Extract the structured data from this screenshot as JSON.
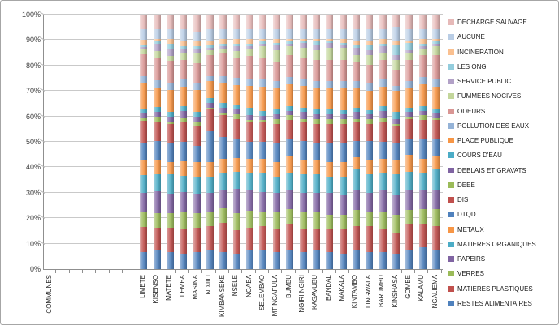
{
  "chart_data": {
    "type": "bar",
    "subtype": "stacked-100-percent",
    "title": "",
    "xlabel": "",
    "ylabel": "",
    "ylim": [
      0,
      100
    ],
    "grid": true,
    "legend_position": "right",
    "stack_note": "series listed bottom-to-top of stack; legend shows reverse order",
    "y_ticks": [
      "0%",
      "10%",
      "20%",
      "30%",
      "40%",
      "50%",
      "60%",
      "70%",
      "80%",
      "90%",
      "100%"
    ],
    "lead_categories": [
      "COMMUNES",
      "",
      "",
      "",
      "",
      "",
      ""
    ],
    "categories": [
      "LIMETE",
      "KISENSO",
      "MATETE",
      "LEMBA",
      "MASINA",
      "NDJILI",
      "KIMBANSEKE",
      "NSELE",
      "NGABA",
      "SELEMBAO",
      "MT NGAFULA",
      "BUMBU",
      "NGIRI NGIRI",
      "KASAVUBU",
      "BANDAL",
      "MAKALA",
      "KINTAMBO",
      "LINGWALA",
      "BARUMBU",
      "KINSHASA",
      "GOMBE",
      "KALAMU",
      "NGALIEMA"
    ],
    "series": [
      {
        "name": "RESTES ALIMENTAIRES",
        "color": "#4F81BD",
        "values": [
          7,
          8,
          7,
          6,
          7,
          8,
          7,
          6,
          8,
          8,
          7,
          8,
          7,
          8,
          7,
          6,
          8,
          7,
          7,
          6,
          8,
          9,
          8
        ]
      },
      {
        "name": "MATIERES PLASTIQUES",
        "color": "#C0504D",
        "values": [
          10,
          9,
          10,
          11,
          10,
          10,
          12,
          10,
          9,
          10,
          10,
          11,
          10,
          9,
          10,
          11,
          10,
          11,
          10,
          9,
          11,
          10,
          10
        ]
      },
      {
        "name": "VERRES",
        "color": "#9BBB59",
        "values": [
          6,
          6,
          6,
          7,
          6,
          6,
          6,
          7,
          7,
          6,
          7,
          6,
          7,
          7,
          6,
          6,
          7,
          6,
          7,
          8,
          6,
          6,
          7
        ]
      },
      {
        "name": "PAPEIRS",
        "color": "#8064A2",
        "values": [
          8,
          9,
          8,
          8,
          8,
          8,
          7,
          10,
          8,
          8,
          8,
          8,
          8,
          8,
          9,
          8,
          8,
          8,
          9,
          8,
          8,
          8,
          8
        ]
      },
      {
        "name": "MATIERES ORGANIQUES",
        "color": "#4BACC6",
        "values": [
          7,
          7,
          8,
          7,
          7,
          7,
          7,
          7,
          7,
          8,
          7,
          7,
          8,
          8,
          7,
          8,
          9,
          8,
          7,
          9,
          8,
          7,
          9
        ]
      },
      {
        "name": "METAUX",
        "color": "#F79646",
        "values": [
          6,
          6,
          5,
          6,
          6,
          6,
          6,
          6,
          6,
          6,
          6,
          7,
          6,
          6,
          6,
          6,
          5,
          6,
          6,
          6,
          7,
          6,
          5
        ]
      },
      {
        "name": "DTQD",
        "color": "#4F81BD",
        "values": [
          7,
          8,
          8,
          8,
          7,
          13,
          9,
          8,
          7,
          7,
          8,
          7,
          8,
          7,
          8,
          8,
          7,
          8,
          7,
          7,
          7,
          8,
          7
        ]
      },
      {
        "name": "DIS",
        "color": "#C0504D",
        "values": [
          9,
          8,
          8,
          8,
          8,
          9,
          9,
          8,
          8,
          8,
          8,
          8,
          8,
          8,
          8,
          8,
          8,
          7,
          8,
          7,
          8,
          8,
          8
        ]
      },
      {
        "name": "DEEE",
        "color": "#9BBB59",
        "values": [
          1,
          2,
          1,
          2,
          2,
          1,
          1,
          2,
          1,
          1,
          2,
          2,
          1,
          2,
          2,
          2,
          1,
          2,
          2,
          1,
          1,
          2,
          1
        ]
      },
      {
        "name": "DEBLAIS  ET GRAVATS",
        "color": "#8064A2",
        "values": [
          2,
          2,
          2,
          3,
          2,
          2,
          2,
          2,
          2,
          2,
          2,
          2,
          3,
          2,
          2,
          2,
          3,
          2,
          3,
          2,
          2,
          2,
          2
        ]
      },
      {
        "name": "COURS D'EAU",
        "color": "#4BACC6",
        "values": [
          2,
          2,
          2,
          2,
          2,
          2,
          2,
          2,
          3,
          2,
          2,
          2,
          2,
          2,
          2,
          2,
          2,
          2,
          2,
          3,
          2,
          2,
          2
        ]
      },
      {
        "name": "PLACE PUBLIQUE",
        "color": "#F79646",
        "values": [
          10,
          8,
          9,
          8,
          9,
          7,
          8,
          8,
          9,
          10,
          9,
          9,
          9,
          9,
          9,
          9,
          8,
          8,
          8,
          9,
          8,
          9,
          9
        ]
      },
      {
        "name": "POLLUTION DES EAUX",
        "color": "#95B3D7",
        "values": [
          3,
          3,
          3,
          3,
          3,
          2,
          3,
          3,
          3,
          3,
          3,
          3,
          3,
          3,
          3,
          3,
          3,
          3,
          3,
          2,
          3,
          3,
          3
        ]
      },
      {
        "name": "ODEURS",
        "color": "#D99694",
        "values": [
          9,
          9,
          9,
          8,
          8,
          9,
          9,
          8,
          9,
          9,
          8,
          9,
          9,
          9,
          9,
          9,
          8,
          8,
          8,
          7,
          9,
          9,
          10
        ]
      },
      {
        "name": "FUMMEES NOCIVES",
        "color": "#C3D69B",
        "values": [
          2,
          3,
          2,
          3,
          4,
          2,
          2,
          3,
          3,
          5,
          5,
          4,
          4,
          4,
          5,
          5,
          3,
          4,
          3,
          4,
          3,
          3,
          4
        ]
      },
      {
        "name": "SERVICE PUBLIC",
        "color": "#B2A1C7",
        "values": [
          1,
          3,
          3,
          2,
          2,
          1,
          1,
          2,
          1,
          1,
          2,
          1,
          2,
          2,
          2,
          1,
          3,
          2,
          3,
          2,
          1,
          1,
          1
        ]
      },
      {
        "name": "LES ONG",
        "color": "#93CDDD",
        "values": [
          1,
          1,
          2,
          1,
          1,
          1,
          1,
          1,
          1,
          1,
          1,
          1,
          1,
          2,
          1,
          1,
          1,
          2,
          1,
          4,
          3,
          1,
          1
        ]
      },
      {
        "name": "INCINERATION",
        "color": "#FAC090",
        "values": [
          2,
          1,
          2,
          2,
          2,
          2,
          2,
          2,
          2,
          1,
          2,
          1,
          1,
          1,
          1,
          2,
          2,
          2,
          2,
          2,
          1,
          2,
          1
        ]
      },
      {
        "name": "AUCUNE",
        "color": "#B9CDE5",
        "values": [
          4,
          4,
          4,
          5,
          4,
          5,
          4,
          4,
          4,
          4,
          4,
          4,
          4,
          4,
          4,
          4,
          5,
          5,
          4,
          6,
          5,
          4,
          4
        ]
      },
      {
        "name": "DECHARGE SAUVAGE",
        "color": "#E6B9B8",
        "values": [
          6,
          6,
          6,
          6,
          7,
          6,
          6,
          6,
          6,
          6,
          6,
          6,
          6,
          6,
          6,
          6,
          6,
          6,
          6,
          5,
          6,
          6,
          6
        ]
      }
    ]
  },
  "colors": {
    "axis": "#8f8f8f",
    "gridline": "#c9c9c9",
    "text": "#3f3f3f",
    "background": "#ffffff"
  }
}
